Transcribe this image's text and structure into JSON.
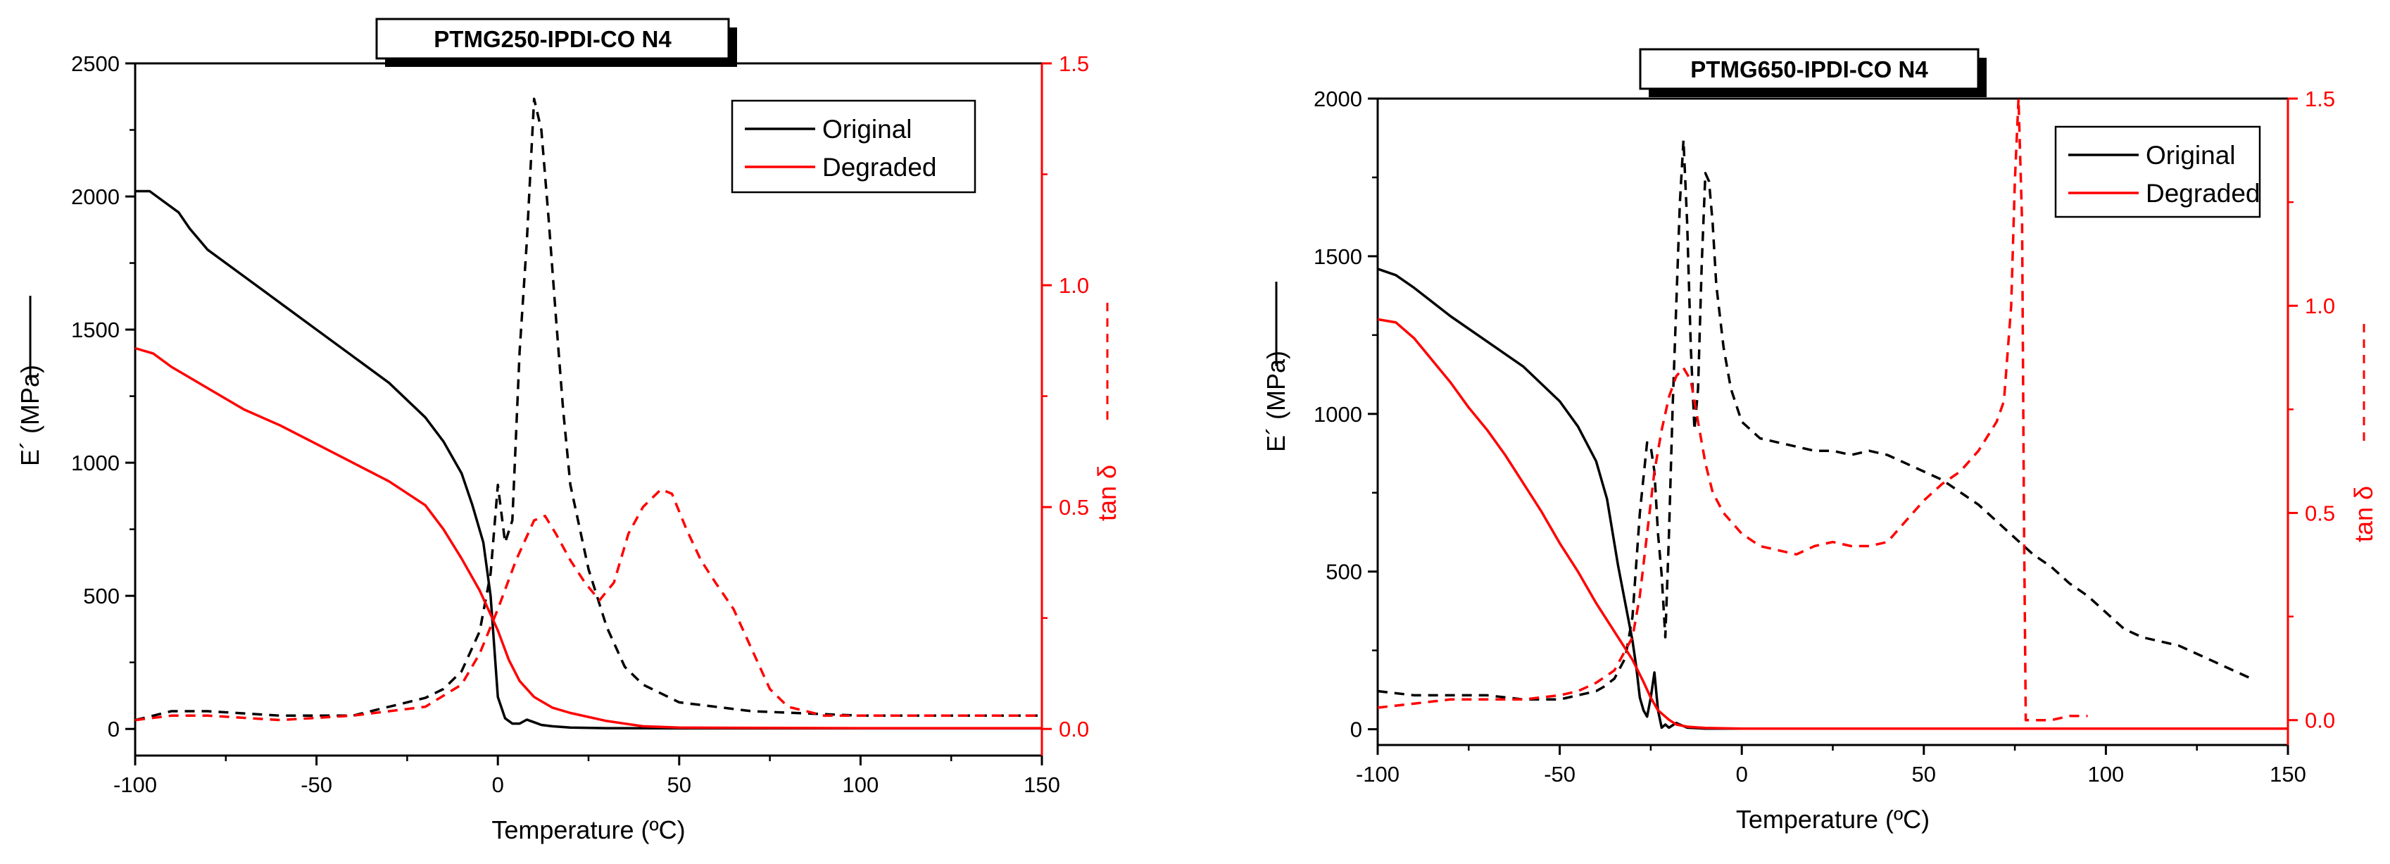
{
  "chart_data": [
    {
      "type": "line",
      "title": "PTMG250-IPDI-CO N4",
      "xlabel": "Temperature (ºC)",
      "ylabel": "E´ (MPa)",
      "y2label": "tan δ",
      "xlim": [
        -100,
        150
      ],
      "ylim": [
        -100,
        2500
      ],
      "y2lim": [
        -0.06,
        1.5
      ],
      "xticks": [
        "-100",
        "-50",
        "0",
        "50",
        "100",
        "150"
      ],
      "yticks": [
        "0",
        "500",
        "1000",
        "1500",
        "2000",
        "2500"
      ],
      "y2ticks": [
        "0.0",
        "0.5",
        "1.0",
        "1.5"
      ],
      "legend": [
        "Original",
        "Degraded"
      ],
      "legend_position": "top-right",
      "colors": {
        "original": "#000000",
        "degraded": "#ff0000",
        "axis2": "#ff0000"
      },
      "series": [
        {
          "name": "Original",
          "kind": "E'",
          "axis": "left",
          "style": "solid",
          "color": "#000000",
          "x": [
            -100,
            -96,
            -92,
            -88,
            -85,
            -80,
            -70,
            -60,
            -50,
            -40,
            -30,
            -20,
            -15,
            -10,
            -7,
            -4,
            -2,
            0,
            2,
            4,
            6,
            8,
            10,
            12,
            15,
            20,
            30,
            50,
            100,
            150
          ],
          "y": [
            2020,
            2020,
            1980,
            1940,
            1880,
            1800,
            1700,
            1600,
            1500,
            1400,
            1300,
            1170,
            1080,
            960,
            840,
            700,
            500,
            120,
            40,
            20,
            20,
            35,
            25,
            15,
            10,
            5,
            3,
            2,
            2,
            2
          ]
        },
        {
          "name": "Original",
          "kind": "tan δ",
          "axis": "right",
          "style": "dashed",
          "color": "#000000",
          "x": [
            -100,
            -90,
            -80,
            -60,
            -40,
            -30,
            -20,
            -15,
            -10,
            -5,
            -2,
            0,
            2,
            4,
            6,
            8,
            10,
            12,
            14,
            16,
            18,
            20,
            25,
            30,
            35,
            40,
            50,
            70,
            100,
            150
          ],
          "y": [
            0.02,
            0.04,
            0.04,
            0.03,
            0.03,
            0.05,
            0.07,
            0.09,
            0.13,
            0.22,
            0.35,
            0.55,
            0.42,
            0.47,
            0.85,
            1.1,
            1.42,
            1.35,
            1.15,
            0.93,
            0.72,
            0.55,
            0.36,
            0.23,
            0.14,
            0.1,
            0.06,
            0.04,
            0.03,
            0.03
          ]
        },
        {
          "name": "Degraded",
          "kind": "E'",
          "axis": "left",
          "style": "solid",
          "color": "#ff0000",
          "x": [
            -100,
            -95,
            -90,
            -85,
            -80,
            -70,
            -60,
            -50,
            -40,
            -30,
            -20,
            -15,
            -10,
            -5,
            0,
            3,
            6,
            10,
            15,
            20,
            30,
            40,
            50,
            100,
            150
          ],
          "y": [
            1430,
            1410,
            1360,
            1320,
            1280,
            1200,
            1140,
            1070,
            1000,
            930,
            840,
            750,
            640,
            520,
            370,
            260,
            180,
            120,
            80,
            60,
            30,
            10,
            5,
            3,
            3
          ]
        },
        {
          "name": "Degraded",
          "kind": "tan δ",
          "axis": "right",
          "style": "dashed",
          "color": "#ff0000",
          "x": [
            -100,
            -90,
            -80,
            -60,
            -40,
            -20,
            -10,
            -5,
            0,
            5,
            10,
            13,
            16,
            20,
            24,
            28,
            32,
            36,
            40,
            45,
            48,
            52,
            56,
            60,
            65,
            70,
            75,
            80,
            90,
            100,
            150
          ],
          "y": [
            0.02,
            0.03,
            0.03,
            0.02,
            0.03,
            0.05,
            0.1,
            0.17,
            0.27,
            0.38,
            0.47,
            0.48,
            0.44,
            0.38,
            0.33,
            0.29,
            0.33,
            0.44,
            0.5,
            0.54,
            0.53,
            0.45,
            0.38,
            0.33,
            0.27,
            0.18,
            0.09,
            0.05,
            0.03,
            0.03,
            0.03
          ]
        }
      ]
    },
    {
      "type": "line",
      "title": "PTMG650-IPDI-CO N4",
      "xlabel": "Temperature (ºC)",
      "ylabel": "E´ (MPa)",
      "y2label": "tan δ",
      "xlim": [
        -100,
        150
      ],
      "ylim": [
        -50,
        2000
      ],
      "y2lim": [
        -0.06,
        1.5
      ],
      "xticks": [
        "-100",
        "-50",
        "0",
        "50",
        "100",
        "150"
      ],
      "yticks": [
        "0",
        "500",
        "1000",
        "1500",
        "2000"
      ],
      "y2ticks": [
        "0.0",
        "0.5",
        "1.0",
        "1.5"
      ],
      "legend": [
        "Original",
        "Degraded"
      ],
      "legend_position": "top-right",
      "colors": {
        "original": "#000000",
        "degraded": "#ff0000",
        "axis2": "#ff0000"
      },
      "series": [
        {
          "name": "Original",
          "kind": "E'",
          "axis": "left",
          "style": "solid",
          "color": "#000000",
          "x": [
            -100,
            -95,
            -90,
            -80,
            -70,
            -60,
            -50,
            -45,
            -40,
            -37,
            -34,
            -32,
            -30,
            -29,
            -28,
            -27,
            -26,
            -25,
            -24,
            -23,
            -22,
            -21,
            -20,
            -18,
            -15,
            -10,
            0,
            50,
            100,
            143
          ],
          "y": [
            1460,
            1440,
            1400,
            1310,
            1230,
            1150,
            1040,
            960,
            850,
            730,
            520,
            400,
            280,
            200,
            100,
            60,
            40,
            100,
            180,
            60,
            5,
            15,
            5,
            20,
            5,
            2,
            2,
            2,
            2,
            2
          ]
        },
        {
          "name": "Original",
          "kind": "tan δ",
          "axis": "right",
          "style": "dashed",
          "color": "#000000",
          "x": [
            -100,
            -90,
            -80,
            -70,
            -60,
            -50,
            -45,
            -40,
            -38,
            -35,
            -32,
            -30,
            -28,
            -26,
            -25,
            -24,
            -23,
            -22,
            -21,
            -20,
            -19,
            -18,
            -17,
            -16,
            -15,
            -14,
            -13,
            -12,
            -11,
            -10,
            -9,
            -8,
            -7,
            -5,
            -3,
            0,
            5,
            10,
            15,
            20,
            25,
            30,
            35,
            40,
            45,
            50,
            55,
            60,
            65,
            70,
            75,
            80,
            85,
            90,
            95,
            100,
            105,
            110,
            115,
            120,
            125,
            130,
            135,
            140
          ],
          "y": [
            0.07,
            0.06,
            0.06,
            0.06,
            0.05,
            0.05,
            0.06,
            0.07,
            0.08,
            0.1,
            0.15,
            0.25,
            0.5,
            0.67,
            0.66,
            0.6,
            0.45,
            0.35,
            0.2,
            0.45,
            0.75,
            1.0,
            1.25,
            1.4,
            1.2,
            0.9,
            0.7,
            0.8,
            1.1,
            1.32,
            1.3,
            1.2,
            1.05,
            0.9,
            0.8,
            0.72,
            0.68,
            0.67,
            0.66,
            0.65,
            0.65,
            0.64,
            0.65,
            0.64,
            0.62,
            0.6,
            0.58,
            0.55,
            0.52,
            0.48,
            0.44,
            0.4,
            0.37,
            0.33,
            0.3,
            0.26,
            0.22,
            0.2,
            0.19,
            0.18,
            0.16,
            0.14,
            0.12,
            0.1
          ]
        },
        {
          "name": "Degraded",
          "kind": "E'",
          "axis": "left",
          "style": "solid",
          "color": "#ff0000",
          "x": [
            -100,
            -95,
            -90,
            -85,
            -80,
            -75,
            -70,
            -65,
            -60,
            -55,
            -50,
            -45,
            -40,
            -35,
            -30,
            -27,
            -25,
            -23,
            -20,
            -18,
            -15,
            -10,
            0,
            50,
            100,
            150
          ],
          "y": [
            1300,
            1290,
            1240,
            1170,
            1100,
            1020,
            950,
            870,
            780,
            690,
            590,
            500,
            400,
            310,
            220,
            150,
            100,
            60,
            30,
            15,
            8,
            4,
            2,
            2,
            2,
            2
          ]
        },
        {
          "name": "Degraded",
          "kind": "tan δ",
          "axis": "right",
          "style": "dashed",
          "color": "#ff0000",
          "x": [
            -100,
            -90,
            -80,
            -70,
            -60,
            -50,
            -45,
            -40,
            -35,
            -30,
            -28,
            -26,
            -24,
            -22,
            -20,
            -18,
            -16,
            -14,
            -12,
            -10,
            -8,
            -5,
            0,
            5,
            10,
            15,
            20,
            25,
            30,
            35,
            40,
            45,
            50,
            55,
            60,
            65,
            70,
            72,
            74,
            75,
            76,
            77,
            77.5,
            78,
            79,
            80,
            85,
            90,
            95
          ],
          "y": [
            0.03,
            0.04,
            0.05,
            0.05,
            0.05,
            0.06,
            0.07,
            0.09,
            0.12,
            0.2,
            0.3,
            0.45,
            0.6,
            0.7,
            0.78,
            0.83,
            0.85,
            0.82,
            0.72,
            0.62,
            0.55,
            0.5,
            0.45,
            0.42,
            0.41,
            0.4,
            0.42,
            0.43,
            0.42,
            0.42,
            0.43,
            0.48,
            0.53,
            0.57,
            0.6,
            0.65,
            0.72,
            0.77,
            1.0,
            1.3,
            1.5,
            1.2,
            0.5,
            0.0,
            0.0,
            0.0,
            0.0,
            0.01,
            0.01
          ]
        }
      ]
    }
  ]
}
